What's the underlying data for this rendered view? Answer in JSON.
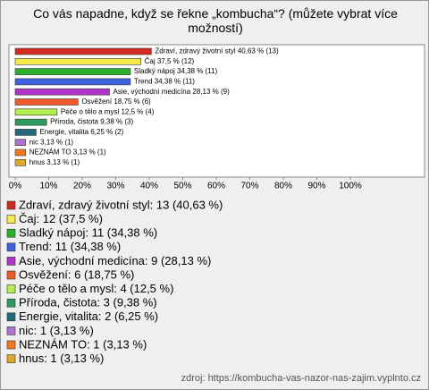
{
  "chart_data": {
    "type": "hbar",
    "title": "Co vás napadne, když se řekne „kombucha“? (můžete vybrat více možností)",
    "source": "zdroj: https://kombucha-vas-nazor-nas-zajim.vyplnto.cz",
    "categories": [
      "Zdraví, zdravý životní styl",
      "Čaj",
      "Sladký nápoj",
      "Trend",
      "Asie, východní medicína",
      "Osvěžení",
      "Péče o tělo a mysl",
      "Příroda, čistota",
      "Energie, vitalita",
      "nic",
      "NEZNÁM TO",
      "hnus"
    ],
    "values": [
      40.63,
      37.5,
      34.38,
      34.38,
      28.13,
      18.75,
      12.5,
      9.38,
      6.25,
      3.13,
      3.13,
      3.13
    ],
    "value_labels": [
      "Zdraví, zdravý životní styl 40,63 % (13)",
      "Čaj 37,5 % (12)",
      "Sladký nápoj 34,38 % (11)",
      "Trend 34,38 % (11)",
      "Asie, východní medicína 28,13 % (9)",
      "Osvěžení 18,75 % (6)",
      "Péče o tělo a mysl 12,5 % (4)",
      "Příroda, čistota 9,38 % (3)",
      "Energie, vitalita 6,25 % (2)",
      "nic 3,13 % (1)",
      "NEZNÁM TO 3,13 % (1)",
      "hnus 3,13 % (1)"
    ],
    "legend_labels": [
      "Zdraví, zdravý životní styl: 13 (40,63 %)",
      "Čaj: 12 (37,5 %)",
      "Sladký nápoj: 11 (34,38 %)",
      "Trend: 11 (34,38 %)",
      "Asie, východní medicína: 9 (28,13 %)",
      "Osvěžení: 6 (18,75 %)",
      "Péče o tělo a mysl: 4 (12,5 %)",
      "Příroda, čistota: 3 (9,38 %)",
      "Energie, vitalita: 2 (6,25 %)",
      "nic: 1 (3,13 %)",
      "NEZNÁM TO: 1 (3,13 %)",
      "hnus: 1 (3,13 %)"
    ],
    "colors": [
      "#d42a22",
      "#f4e84a",
      "#2cb02c",
      "#3d5fe0",
      "#b034c8",
      "#f05a2a",
      "#b4ee50",
      "#2c9a5c",
      "#236b7a",
      "#b070d0",
      "#f07a22",
      "#e0a828"
    ],
    "xlim": [
      0,
      100
    ],
    "xticks": [
      {
        "value": 0,
        "label": "0%"
      },
      {
        "value": 10,
        "label": "10%"
      },
      {
        "value": 20,
        "label": "20%"
      },
      {
        "value": 30,
        "label": "30%"
      },
      {
        "value": 40,
        "label": "40%"
      },
      {
        "value": 50,
        "label": "50%"
      },
      {
        "value": 60,
        "label": "60%"
      },
      {
        "value": 70,
        "label": "70%"
      },
      {
        "value": 80,
        "label": "80%"
      },
      {
        "value": 90,
        "label": "90%"
      },
      {
        "value": 100,
        "label": "100%"
      }
    ]
  }
}
